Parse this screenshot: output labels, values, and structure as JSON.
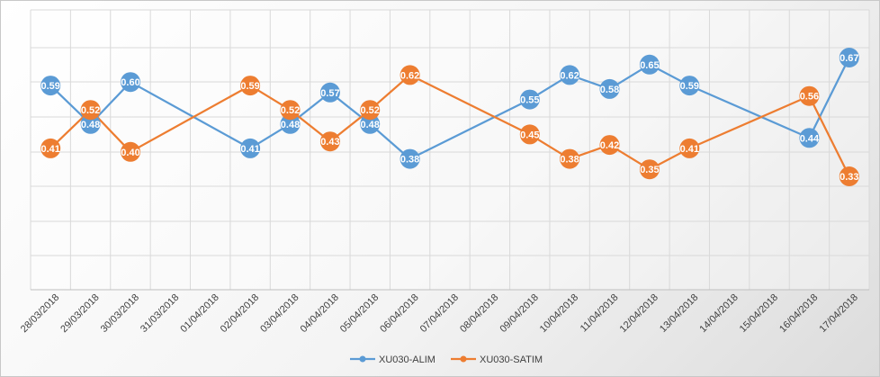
{
  "chart_data": {
    "type": "line",
    "title": "",
    "xlabel": "",
    "ylabel": "",
    "ylim": [
      0,
      0.8
    ],
    "categories": [
      "28/03/2018",
      "29/03/2018",
      "30/03/2018",
      "31/03/2018",
      "01/04/2018",
      "02/04/2018",
      "03/04/2018",
      "04/04/2018",
      "05/04/2018",
      "06/04/2018",
      "07/04/2018",
      "08/04/2018",
      "09/04/2018",
      "10/04/2018",
      "11/04/2018",
      "12/04/2018",
      "13/04/2018",
      "14/04/2018",
      "15/04/2018",
      "16/04/2018",
      "17/04/2018"
    ],
    "series": [
      {
        "name": "XU030-ALIM",
        "color": "#5b9bd5",
        "values": [
          0.59,
          0.48,
          0.6,
          null,
          null,
          0.41,
          0.48,
          0.57,
          0.48,
          0.38,
          null,
          null,
          0.55,
          0.62,
          0.58,
          0.65,
          0.59,
          null,
          null,
          0.44,
          0.67
        ],
        "labels": [
          "0.59",
          "0.48",
          "0.60",
          null,
          null,
          "0.41",
          "0.48",
          "0.57",
          "0.48",
          "0.38",
          null,
          null,
          "0.55",
          "0.62",
          "0.58",
          "0.65",
          "0.59",
          null,
          null,
          "0.44",
          "0.67"
        ]
      },
      {
        "name": "XU030-SATIM",
        "color": "#ed7d31",
        "values": [
          0.41,
          0.52,
          0.4,
          null,
          null,
          0.59,
          0.52,
          0.43,
          0.52,
          0.62,
          null,
          null,
          0.45,
          0.38,
          0.42,
          0.35,
          0.41,
          null,
          null,
          0.56,
          0.33
        ],
        "labels": [
          "0.41",
          "0.52",
          "0.40",
          null,
          null,
          "0.59",
          "0.52",
          "0.43",
          "0.52",
          "0.62",
          null,
          null,
          "0.45",
          "0.38",
          "0.42",
          "0.35",
          "0.41",
          null,
          null,
          "0.56",
          "0.33"
        ]
      }
    ],
    "grid": true,
    "legend_position": "bottom"
  }
}
